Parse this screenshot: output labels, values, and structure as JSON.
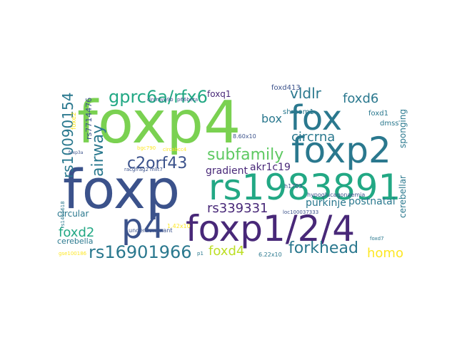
{
  "chart_data": {
    "type": "wordcloud",
    "background": "#ffffff",
    "words": [
      {
        "text": "foxp4",
        "color": "#7ad151"
      },
      {
        "text": "foxp",
        "color": "#3b528b"
      },
      {
        "text": "rs1983891",
        "color": "#22a884"
      },
      {
        "text": "foxp1/2/4",
        "color": "#482878"
      },
      {
        "text": "foxp2",
        "color": "#2a788e"
      },
      {
        "text": "fox",
        "color": "#2a788e"
      },
      {
        "text": "p4",
        "color": "#3b528b"
      },
      {
        "text": "gprc6a/rfx6",
        "color": "#22a884"
      },
      {
        "text": "airway",
        "color": "#2a788e"
      },
      {
        "text": "subfamily",
        "color": "#5ec962"
      },
      {
        "text": "c2orf43",
        "color": "#3b528b"
      },
      {
        "text": "forkhead",
        "color": "#2a788e"
      },
      {
        "text": "rs339331",
        "color": "#482878"
      },
      {
        "text": "rs16901966",
        "color": "#2a788e"
      },
      {
        "text": "rs10090154",
        "color": "#2a788e"
      },
      {
        "text": "circrna",
        "color": "#2a788e"
      },
      {
        "text": "vldlr",
        "color": "#2a788e"
      },
      {
        "text": "foxd6",
        "color": "#2a788e"
      },
      {
        "text": "box",
        "color": "#2a788e"
      },
      {
        "text": "foxd2",
        "color": "#22a884"
      },
      {
        "text": "foxd4",
        "color": "#bddf26"
      },
      {
        "text": "homo",
        "color": "#fde725"
      },
      {
        "text": "gradient",
        "color": "#482878"
      },
      {
        "text": "akr1c19",
        "color": "#482878"
      },
      {
        "text": "purkinje",
        "color": "#2a788e"
      },
      {
        "text": "postnatal",
        "color": "#2a788e"
      },
      {
        "text": "cerebellar",
        "color": "#2a788e"
      },
      {
        "text": "sponging",
        "color": "#2a788e"
      },
      {
        "text": "foxq1",
        "color": "#482878"
      },
      {
        "text": "shroom1",
        "color": "#2a788e"
      },
      {
        "text": "foxd1",
        "color": "#2a788e"
      },
      {
        "text": "dmss",
        "color": "#2a788e"
      },
      {
        "text": "circular",
        "color": "#2a788e"
      },
      {
        "text": "cerebella",
        "color": "#2a788e"
      },
      {
        "text": "rs7714476",
        "color": "#3b528b"
      },
      {
        "text": "foxd413",
        "color": "#3b528b"
      },
      {
        "text": "h1703",
        "color": "#3b528b"
      },
      {
        "text": "hypoglucagonaemia",
        "color": "#3b528b"
      },
      {
        "text": "8.60x10",
        "color": "#3b528b"
      },
      {
        "text": "underdominant",
        "color": "#3b528b"
      },
      {
        "text": "1.42x10",
        "color": "#fde725"
      },
      {
        "text": "6.22x10",
        "color": "#2a788e"
      },
      {
        "text": "foxe2",
        "color": "#fde725"
      },
      {
        "text": "circmyo9b",
        "color": "#3b528b"
      },
      {
        "text": "p66beta",
        "color": "#3b528b"
      },
      {
        "text": "circabcc4",
        "color": "#fde725"
      },
      {
        "text": "bgc790",
        "color": "#fde725"
      },
      {
        "text": "racgfrag2",
        "color": "#3b528b"
      },
      {
        "text": "mllt7",
        "color": "#3b528b"
      },
      {
        "text": "foxp3a",
        "color": "#3b528b"
      },
      {
        "text": "rs1465618",
        "color": "#2a788e"
      },
      {
        "text": "gse100186",
        "color": "#fde725"
      },
      {
        "text": "loc100037333",
        "color": "#3b528b"
      },
      {
        "text": "foxd7",
        "color": "#2a788e"
      },
      {
        "text": "p1",
        "color": "#2a788e"
      }
    ]
  }
}
